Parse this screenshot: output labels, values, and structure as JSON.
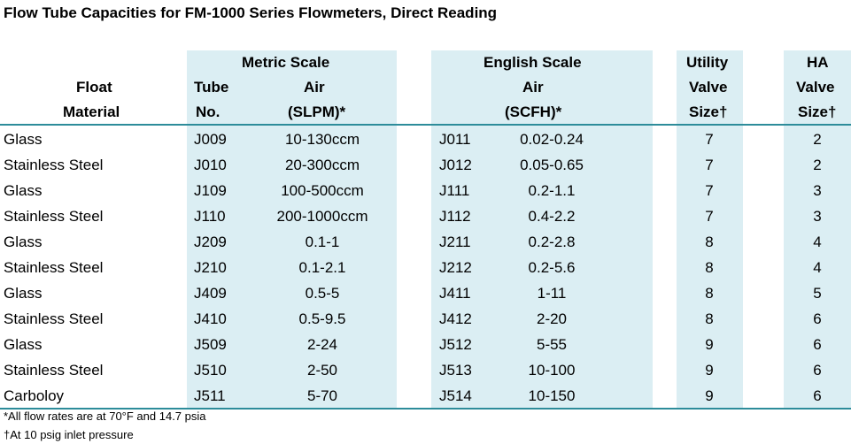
{
  "title": "Flow Tube Capacities for FM-1000 Series Flowmeters, Direct Reading",
  "headers": {
    "float_material": [
      "Float",
      "Material"
    ],
    "tube_no": [
      "Tube",
      "No."
    ],
    "metric_scale": "Metric Scale",
    "metric_air": [
      "Air",
      "(SLPM)*"
    ],
    "english_scale": "English Scale",
    "english_air": [
      "Air",
      "(SCFH)*"
    ],
    "utility_valve": [
      "Utility",
      "Valve",
      "Size†"
    ],
    "ha_valve": [
      "HA",
      "Valve",
      "Size†"
    ]
  },
  "columns": [
    "float_material",
    "metric_tube",
    "metric_air",
    "english_tube",
    "english_air",
    "utility_valve_size",
    "ha_valve_size"
  ],
  "rows": [
    [
      "Glass",
      "J009",
      "10-130ccm",
      "J011",
      "0.02-0.24",
      "7",
      "2"
    ],
    [
      "Stainless Steel",
      "J010",
      "20-300ccm",
      "J012",
      "0.05-0.65",
      "7",
      "2"
    ],
    [
      "Glass",
      "J109",
      "100-500ccm",
      "J111",
      "0.2-1.1",
      "7",
      "3"
    ],
    [
      "Stainless Steel",
      "J110",
      "200-1000ccm",
      "J112",
      "0.4-2.2",
      "7",
      "3"
    ],
    [
      "Glass",
      "J209",
      "0.1-1",
      "J211",
      "0.2-2.8",
      "8",
      "4"
    ],
    [
      "Stainless Steel",
      "J210",
      "0.1-2.1",
      "J212",
      "0.2-5.6",
      "8",
      "4"
    ],
    [
      "Glass",
      "J409",
      "0.5-5",
      "J411",
      "1-11",
      "8",
      "5"
    ],
    [
      "Stainless Steel",
      "J410",
      "0.5-9.5",
      "J412",
      "2-20",
      "8",
      "6"
    ],
    [
      "Glass",
      "J509",
      "2-24",
      "J512",
      "5-55",
      "9",
      "6"
    ],
    [
      "Stainless Steel",
      "J510",
      "2-50",
      "J513",
      "10-100",
      "9",
      "6"
    ],
    [
      "Carboloy",
      "J511",
      "5-70",
      "J514",
      "10-150",
      "9",
      "6"
    ]
  ],
  "footnotes": [
    "*All flow rates are at 70°F and 14.7 psia",
    "†At 10 psig inlet pressure"
  ],
  "colors": {
    "band": "#dbeef3",
    "rule": "#2d8c9a"
  }
}
